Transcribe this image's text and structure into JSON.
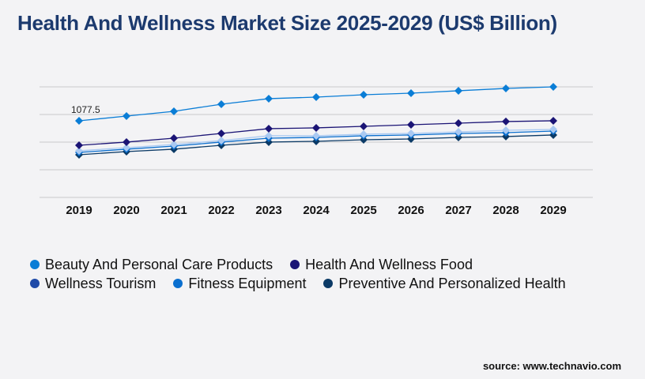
{
  "chart_data": {
    "type": "line",
    "title": "Health And Wellness Market Size 2025-2029 (US$ Billion)",
    "x": [
      "2019",
      "2020",
      "2021",
      "2022",
      "2023",
      "2024",
      "2025",
      "2026",
      "2027",
      "2028",
      "2029"
    ],
    "ylim": [
      0,
      1555
    ],
    "grid": true,
    "legend_placement": "bottom",
    "annotations": [
      {
        "series": "Beauty And Personal Care Products",
        "x": "2019",
        "label": "1077.5"
      }
    ],
    "series": [
      {
        "name": "Beauty And Personal Care Products",
        "color": "#0a7dd6",
        "values": [
          1077.5,
          1144,
          1211,
          1311,
          1389,
          1411,
          1444,
          1466,
          1500,
          1533,
          1555
        ]
      },
      {
        "name": "Health And Wellness Food",
        "color": "#1b1475",
        "values": [
          733,
          778,
          833,
          900,
          967,
          978,
          1000,
          1022,
          1044,
          1067,
          1078
        ]
      },
      {
        "name": "Wellness Tourism",
        "color": "#a9c9f2",
        "legend_color": "#1f4aa8",
        "values": [
          656,
          700,
          744,
          800,
          867,
          867,
          889,
          900,
          922,
          944,
          956
        ]
      },
      {
        "name": "Fitness Equipment",
        "color": "#0a6fcf",
        "values": [
          633,
          678,
          722,
          778,
          833,
          844,
          867,
          878,
          900,
          911,
          933
        ]
      },
      {
        "name": "Preventive And Personalized Health",
        "color": "#0b3a66",
        "values": [
          600,
          644,
          678,
          733,
          778,
          789,
          811,
          822,
          844,
          856,
          878
        ]
      }
    ]
  },
  "source": "source: www.technavio.com"
}
